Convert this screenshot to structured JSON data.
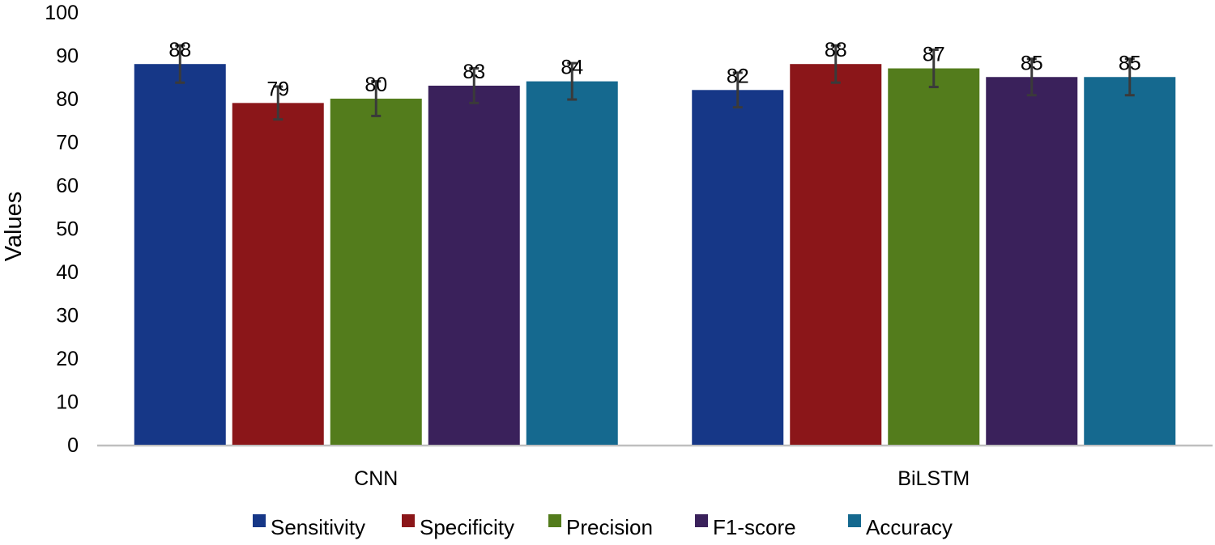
{
  "chart_data": {
    "type": "bar",
    "title": "",
    "xlabel": "",
    "ylabel": "Values",
    "ylim": [
      0,
      100
    ],
    "yticks": [
      "0",
      "10",
      "20",
      "30",
      "40",
      "50",
      "60",
      "70",
      "80",
      "90",
      "100"
    ],
    "categories": [
      "CNN",
      "BiLSTM"
    ],
    "series": [
      {
        "name": "Sensitivity",
        "color": "#163787",
        "values": [
          88,
          82
        ],
        "errors": [
          4.3,
          4.0
        ]
      },
      {
        "name": "Specificity",
        "color": "#8B1619",
        "values": [
          79,
          88
        ],
        "errors": [
          3.8,
          4.3
        ]
      },
      {
        "name": "Precision",
        "color": "#537C1C",
        "values": [
          80,
          87
        ],
        "errors": [
          4.0,
          4.3
        ]
      },
      {
        "name": "F1-score",
        "color": "#3A215B",
        "values": [
          83,
          85
        ],
        "errors": [
          4.0,
          4.2
        ]
      },
      {
        "name": "Accuracy",
        "color": "#15698F",
        "values": [
          84,
          85
        ],
        "errors": [
          4.2,
          4.2
        ]
      }
    ],
    "legend_position": "bottom",
    "grid": false
  }
}
